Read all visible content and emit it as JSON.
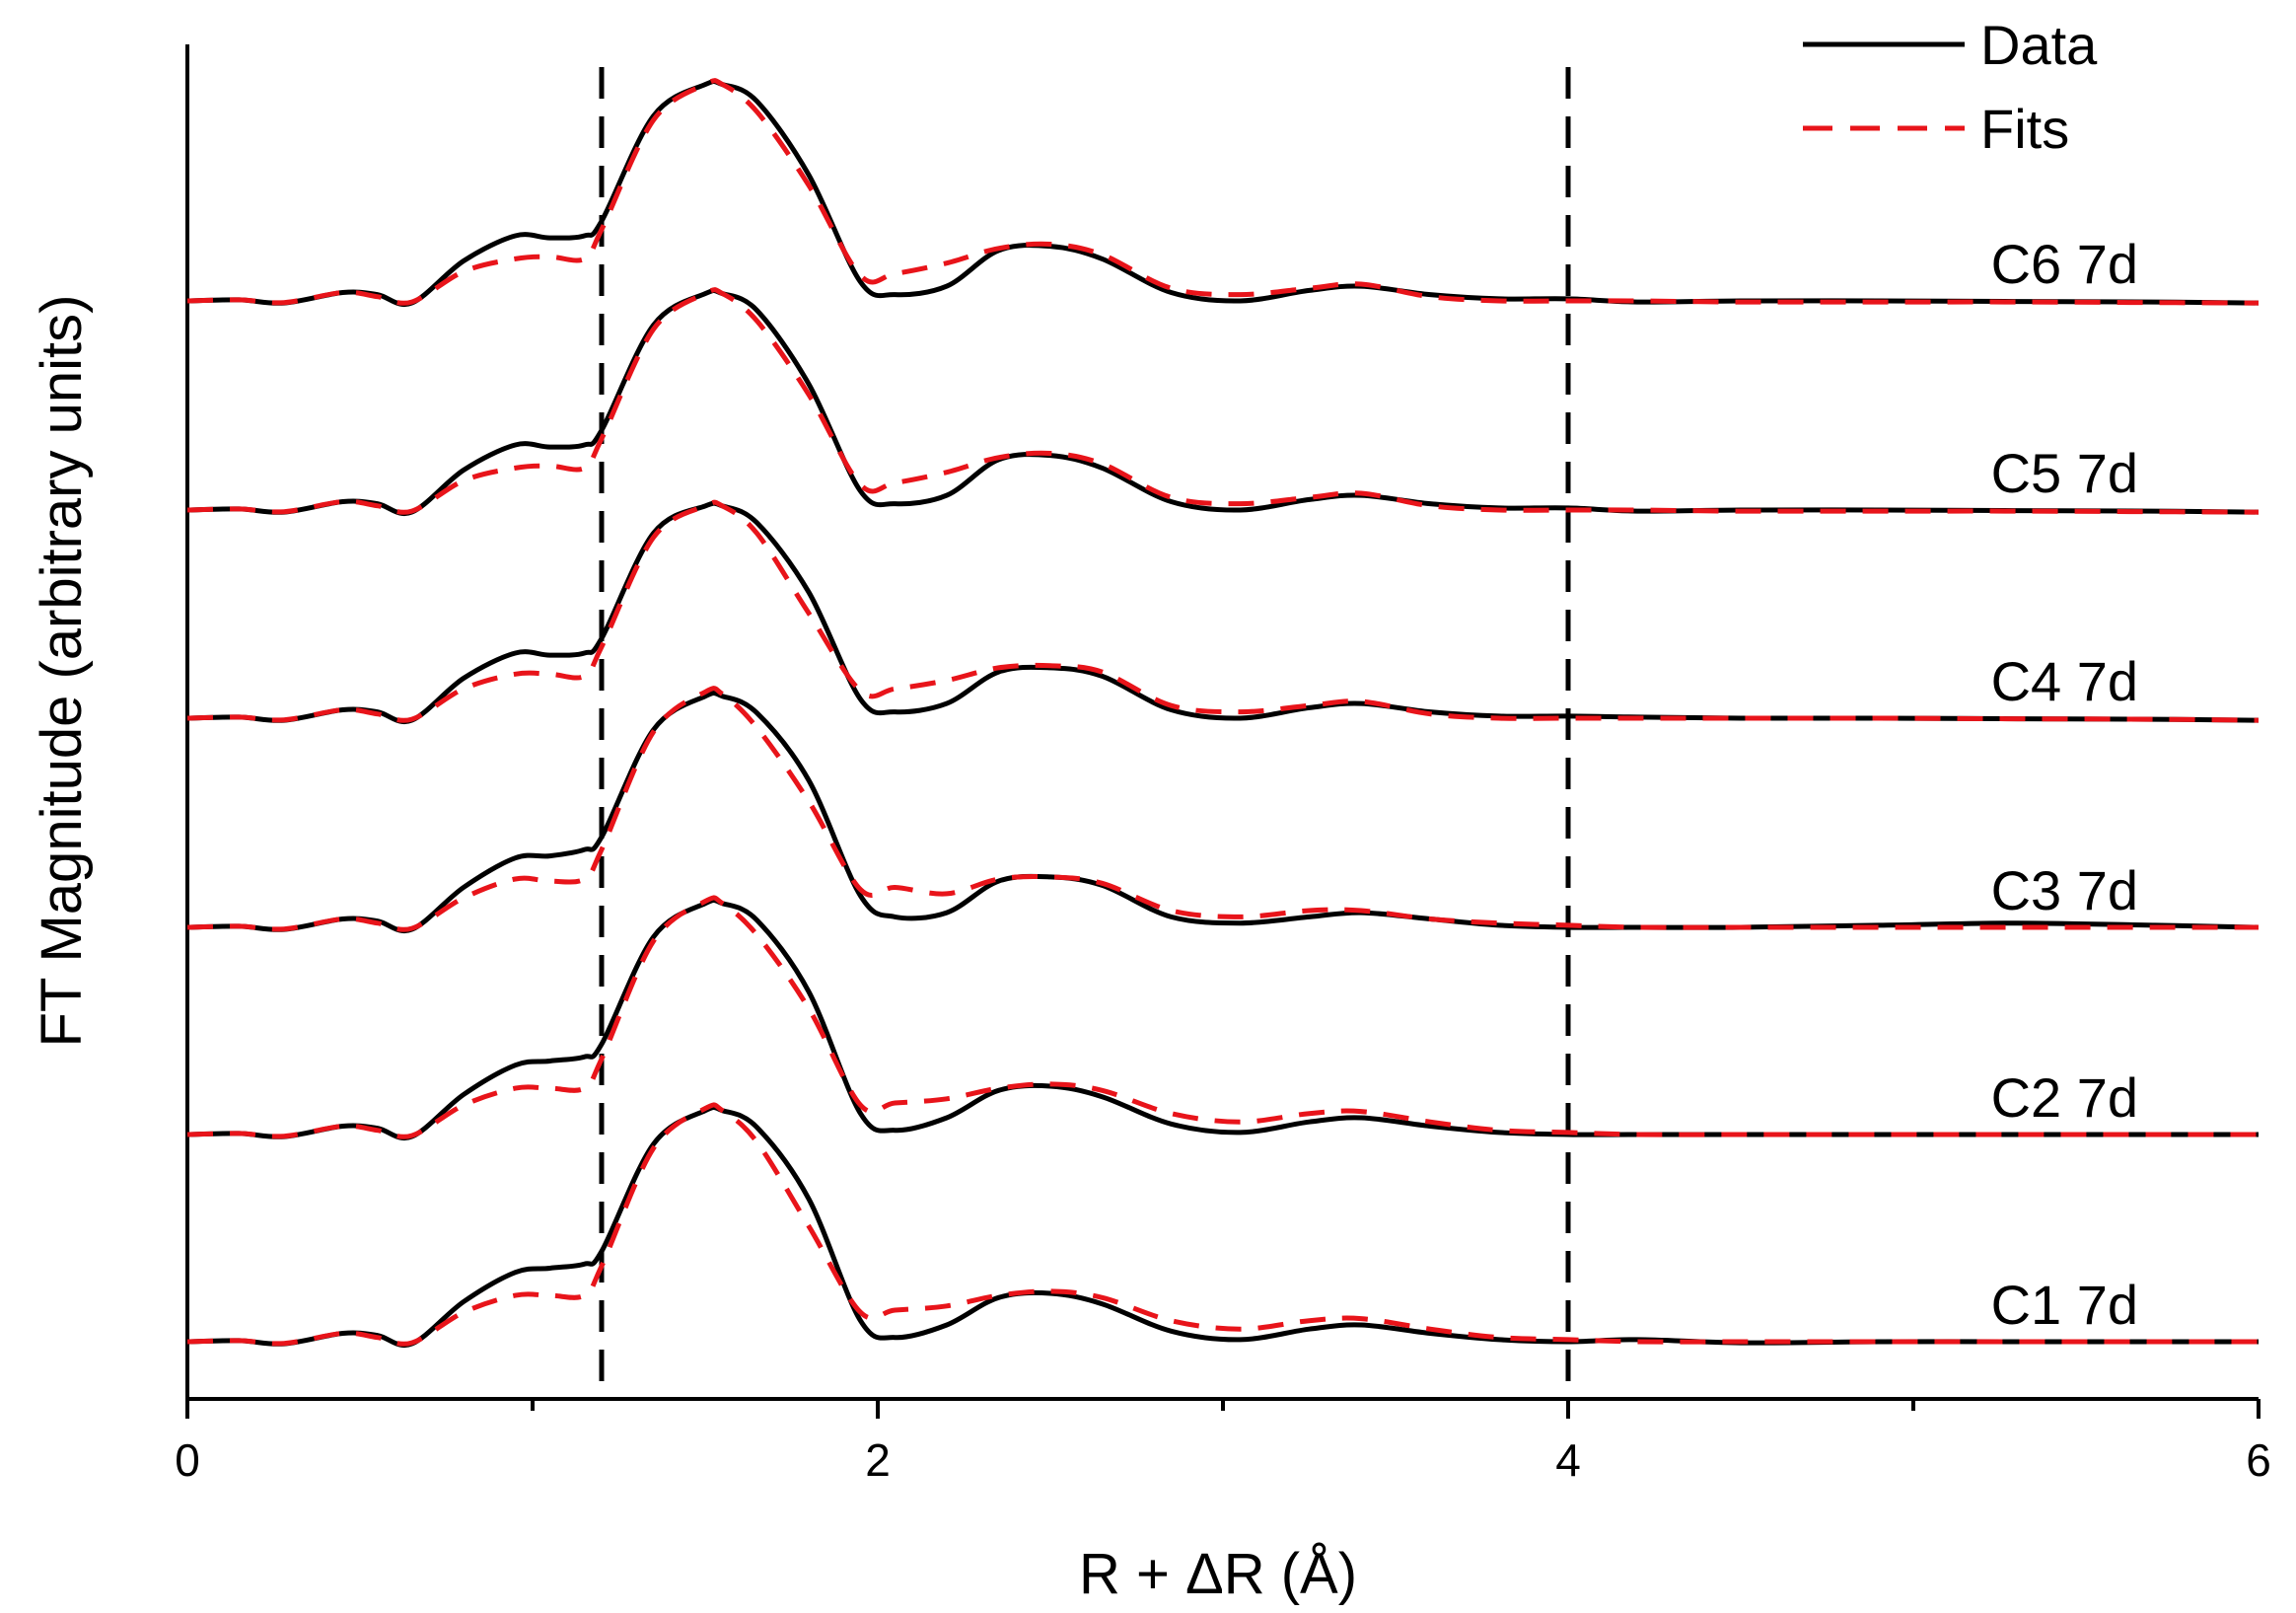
{
  "chart_data": {
    "type": "line",
    "xlabel": "R + ΔR (Å)",
    "ylabel": "FT Magnitude (arbitrary units)",
    "xlim": [
      0,
      6
    ],
    "xticks": [
      {
        "value": 0,
        "label": "0"
      },
      {
        "value": 2,
        "label": "2"
      },
      {
        "value": 4,
        "label": "4"
      },
      {
        "value": 6,
        "label": "6"
      }
    ],
    "minor_xticks": [
      1,
      3,
      5
    ],
    "reference_lines_x": [
      1.2,
      4.0
    ],
    "grid": false,
    "legend": {
      "placement": "top-right",
      "entries": [
        {
          "label": "Data",
          "color": "#000000",
          "style": "solid"
        },
        {
          "label": "Fits",
          "color": "#e8141a",
          "style": "dashed"
        }
      ]
    },
    "colors": {
      "data": "#000000",
      "fit": "#e8141a"
    },
    "x": [
      0,
      0.15,
      0.28,
      0.45,
      0.55,
      0.65,
      0.8,
      0.95,
      1.05,
      1.15,
      1.2,
      1.35,
      1.5,
      1.55,
      1.65,
      1.8,
      1.95,
      2.05,
      2.2,
      2.35,
      2.5,
      2.65,
      2.85,
      3.05,
      3.25,
      3.4,
      3.6,
      3.8,
      4.0,
      4.2,
      4.5,
      4.9,
      5.3,
      5.7,
      6.0
    ],
    "series": [
      {
        "name": "C6 7d",
        "data": [
          0,
          0.005,
          -0.01,
          0.04,
          0.03,
          -0.01,
          0.19,
          0.31,
          0.3,
          0.31,
          0.38,
          0.88,
          1.03,
          1.03,
          0.95,
          0.6,
          0.09,
          0.03,
          0.07,
          0.24,
          0.26,
          0.2,
          0.04,
          0.0,
          0.05,
          0.07,
          0.03,
          0.01,
          0.01,
          -0.005,
          0.0,
          0.0,
          -0.003,
          -0.005,
          -0.01
        ],
        "fit": [
          0,
          0.005,
          -0.008,
          0.04,
          0.02,
          -0.005,
          0.14,
          0.2,
          0.21,
          0.2,
          0.34,
          0.86,
          1.03,
          1.03,
          0.9,
          0.55,
          0.12,
          0.13,
          0.18,
          0.25,
          0.27,
          0.22,
          0.06,
          0.03,
          0.06,
          0.08,
          0.02,
          0.0,
          0.0,
          0.0,
          -0.005,
          -0.005,
          -0.005,
          -0.008,
          -0.01
        ]
      },
      {
        "name": "C5 7d",
        "data": [
          0,
          0.005,
          -0.01,
          0.04,
          0.03,
          -0.01,
          0.19,
          0.31,
          0.3,
          0.31,
          0.38,
          0.88,
          1.03,
          1.03,
          0.95,
          0.6,
          0.09,
          0.03,
          0.07,
          0.24,
          0.26,
          0.2,
          0.04,
          0.0,
          0.05,
          0.07,
          0.03,
          0.01,
          0.01,
          -0.005,
          0.0,
          0.0,
          -0.003,
          -0.005,
          -0.01
        ],
        "fit": [
          0,
          0.005,
          -0.008,
          0.04,
          0.02,
          -0.005,
          0.14,
          0.2,
          0.21,
          0.2,
          0.34,
          0.86,
          1.03,
          1.03,
          0.9,
          0.55,
          0.12,
          0.13,
          0.18,
          0.25,
          0.27,
          0.22,
          0.06,
          0.03,
          0.06,
          0.08,
          0.02,
          0.0,
          0.0,
          0.0,
          -0.005,
          -0.005,
          -0.005,
          -0.008,
          -0.01
        ]
      },
      {
        "name": "C4 7d",
        "data": [
          0,
          0.005,
          -0.01,
          0.04,
          0.03,
          -0.01,
          0.19,
          0.31,
          0.3,
          0.31,
          0.38,
          0.88,
          1.01,
          1.01,
          0.93,
          0.6,
          0.09,
          0.03,
          0.07,
          0.22,
          0.24,
          0.2,
          0.04,
          0.0,
          0.05,
          0.07,
          0.03,
          0.01,
          0.01,
          0.005,
          0.0,
          0.0,
          -0.003,
          -0.005,
          -0.01
        ],
        "fit": [
          0,
          0.005,
          -0.008,
          0.04,
          0.02,
          -0.005,
          0.14,
          0.21,
          0.21,
          0.2,
          0.34,
          0.86,
          1.01,
          1.01,
          0.88,
          0.5,
          0.13,
          0.14,
          0.18,
          0.24,
          0.25,
          0.22,
          0.06,
          0.03,
          0.06,
          0.08,
          0.02,
          0.0,
          0.0,
          0.0,
          0.0,
          0.0,
          -0.003,
          -0.005,
          -0.01
        ]
      },
      {
        "name": "C3 7d",
        "data": [
          0,
          0.005,
          -0.01,
          0.04,
          0.03,
          -0.01,
          0.19,
          0.33,
          0.34,
          0.37,
          0.43,
          0.94,
          1.1,
          1.1,
          1.02,
          0.7,
          0.15,
          0.05,
          0.07,
          0.22,
          0.24,
          0.2,
          0.05,
          0.02,
          0.05,
          0.07,
          0.04,
          0.01,
          0.0,
          0.0,
          0.0,
          0.01,
          0.02,
          0.01,
          0.0
        ],
        "fit": [
          0,
          0.005,
          -0.008,
          0.04,
          0.02,
          -0.005,
          0.14,
          0.23,
          0.22,
          0.23,
          0.37,
          0.93,
          1.12,
          1.11,
          0.95,
          0.6,
          0.18,
          0.19,
          0.16,
          0.23,
          0.24,
          0.21,
          0.08,
          0.05,
          0.08,
          0.08,
          0.04,
          0.02,
          0.01,
          0.0,
          0.0,
          0.0,
          0.0,
          0.0,
          0.0
        ]
      },
      {
        "name": "C2 7d",
        "data": [
          0,
          0.005,
          -0.01,
          0.04,
          0.03,
          -0.01,
          0.19,
          0.33,
          0.35,
          0.37,
          0.43,
          0.94,
          1.1,
          1.1,
          1.02,
          0.68,
          0.1,
          0.02,
          0.08,
          0.21,
          0.23,
          0.18,
          0.05,
          0.01,
          0.06,
          0.08,
          0.04,
          0.01,
          0.0,
          0.0,
          0.0,
          0.0,
          0.0,
          0.0,
          0.0
        ],
        "fit": [
          0,
          0.005,
          -0.008,
          0.04,
          0.02,
          -0.005,
          0.14,
          0.22,
          0.22,
          0.22,
          0.36,
          0.92,
          1.11,
          1.1,
          0.95,
          0.6,
          0.14,
          0.15,
          0.17,
          0.22,
          0.24,
          0.21,
          0.1,
          0.06,
          0.1,
          0.11,
          0.06,
          0.02,
          0.01,
          0.0,
          0.0,
          0.0,
          0.0,
          0.0,
          0.0
        ]
      },
      {
        "name": "C1 7d",
        "data": [
          0,
          0.005,
          -0.01,
          0.04,
          0.03,
          -0.01,
          0.19,
          0.33,
          0.35,
          0.37,
          0.43,
          0.94,
          1.1,
          1.1,
          1.02,
          0.68,
          0.1,
          0.02,
          0.08,
          0.21,
          0.23,
          0.18,
          0.05,
          0.01,
          0.06,
          0.08,
          0.04,
          0.01,
          0.0,
          0.01,
          -0.005,
          0.0,
          0.0,
          0.0,
          0.0
        ],
        "fit": [
          0,
          0.005,
          -0.008,
          0.04,
          0.02,
          -0.005,
          0.14,
          0.22,
          0.22,
          0.22,
          0.36,
          0.92,
          1.11,
          1.1,
          0.95,
          0.55,
          0.14,
          0.15,
          0.17,
          0.22,
          0.24,
          0.21,
          0.1,
          0.06,
          0.1,
          0.11,
          0.06,
          0.02,
          0.01,
          0.0,
          0.0,
          0.0,
          0.0,
          0.0,
          0.0
        ]
      }
    ]
  }
}
